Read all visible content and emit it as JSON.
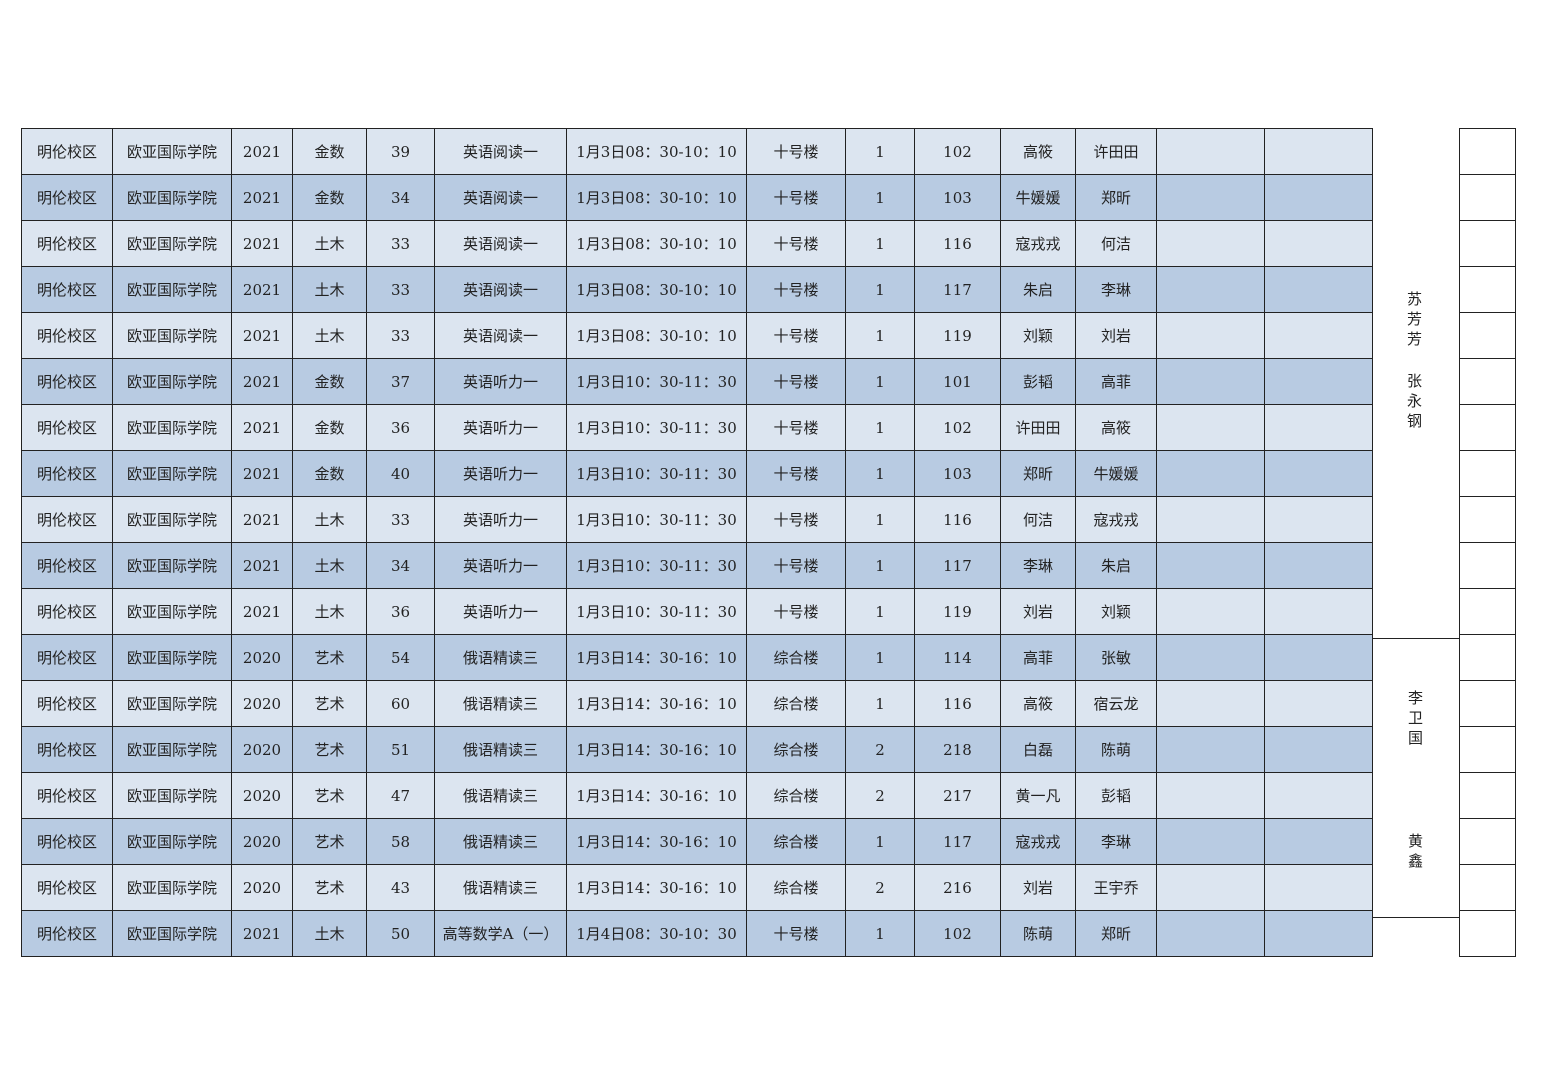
{
  "rows": [
    [
      "明伦校区",
      "欧亚国际学院",
      "2021",
      "金数",
      "39",
      "英语阅读一",
      "1月3日08：30-10：10",
      "十号楼",
      "1",
      "102",
      "高筱",
      "许田田",
      "",
      ""
    ],
    [
      "明伦校区",
      "欧亚国际学院",
      "2021",
      "金数",
      "34",
      "英语阅读一",
      "1月3日08：30-10：10",
      "十号楼",
      "1",
      "103",
      "牛媛媛",
      "郑昕",
      "",
      ""
    ],
    [
      "明伦校区",
      "欧亚国际学院",
      "2021",
      "土木",
      "33",
      "英语阅读一",
      "1月3日08：30-10：10",
      "十号楼",
      "1",
      "116",
      "寇戎戎",
      "何洁",
      "",
      ""
    ],
    [
      "明伦校区",
      "欧亚国际学院",
      "2021",
      "土木",
      "33",
      "英语阅读一",
      "1月3日08：30-10：10",
      "十号楼",
      "1",
      "117",
      "朱启",
      "李琳",
      "",
      ""
    ],
    [
      "明伦校区",
      "欧亚国际学院",
      "2021",
      "土木",
      "33",
      "英语阅读一",
      "1月3日08：30-10：10",
      "十号楼",
      "1",
      "119",
      "刘颖",
      "刘岩",
      "",
      ""
    ],
    [
      "明伦校区",
      "欧亚国际学院",
      "2021",
      "金数",
      "37",
      "英语听力一",
      "1月3日10：30-11：30",
      "十号楼",
      "1",
      "101",
      "彭韬",
      "高菲",
      "",
      ""
    ],
    [
      "明伦校区",
      "欧亚国际学院",
      "2021",
      "金数",
      "36",
      "英语听力一",
      "1月3日10：30-11：30",
      "十号楼",
      "1",
      "102",
      "许田田",
      "高筱",
      "",
      ""
    ],
    [
      "明伦校区",
      "欧亚国际学院",
      "2021",
      "金数",
      "40",
      "英语听力一",
      "1月3日10：30-11：30",
      "十号楼",
      "1",
      "103",
      "郑昕",
      "牛媛媛",
      "",
      ""
    ],
    [
      "明伦校区",
      "欧亚国际学院",
      "2021",
      "土木",
      "33",
      "英语听力一",
      "1月3日10：30-11：30",
      "十号楼",
      "1",
      "116",
      "何洁",
      "寇戎戎",
      "",
      ""
    ],
    [
      "明伦校区",
      "欧亚国际学院",
      "2021",
      "土木",
      "34",
      "英语听力一",
      "1月3日10：30-11：30",
      "十号楼",
      "1",
      "117",
      "李琳",
      "朱启",
      "",
      ""
    ],
    [
      "明伦校区",
      "欧亚国际学院",
      "2021",
      "土木",
      "36",
      "英语听力一",
      "1月3日10：30-11：30",
      "十号楼",
      "1",
      "119",
      "刘岩",
      "刘颖",
      "",
      ""
    ],
    [
      "明伦校区",
      "欧亚国际学院",
      "2020",
      "艺术",
      "54",
      "俄语精读三",
      "1月3日14：30-16：10",
      "综合楼",
      "1",
      "114",
      "高菲",
      "张敏",
      "",
      ""
    ],
    [
      "明伦校区",
      "欧亚国际学院",
      "2020",
      "艺术",
      "60",
      "俄语精读三",
      "1月3日14：30-16：10",
      "综合楼",
      "1",
      "116",
      "高筱",
      "宿云龙",
      "",
      ""
    ],
    [
      "明伦校区",
      "欧亚国际学院",
      "2020",
      "艺术",
      "51",
      "俄语精读三",
      "1月3日14：30-16：10",
      "综合楼",
      "2",
      "218",
      "白磊",
      "陈萌",
      "",
      ""
    ],
    [
      "明伦校区",
      "欧亚国际学院",
      "2020",
      "艺术",
      "47",
      "俄语精读三",
      "1月3日14：30-16：10",
      "综合楼",
      "2",
      "217",
      "黄一凡",
      "彭韬",
      "",
      ""
    ],
    [
      "明伦校区",
      "欧亚国际学院",
      "2020",
      "艺术",
      "58",
      "俄语精读三",
      "1月3日14：30-16：10",
      "综合楼",
      "1",
      "117",
      "寇戎戎",
      "李琳",
      "",
      ""
    ],
    [
      "明伦校区",
      "欧亚国际学院",
      "2020",
      "艺术",
      "43",
      "俄语精读三",
      "1月3日14：30-16：10",
      "综合楼",
      "2",
      "216",
      "刘岩",
      "王宇乔",
      "",
      ""
    ],
    [
      "明伦校区",
      "欧亚国际学院",
      "2021",
      "土木",
      "50",
      "高等数学A（一）",
      "1月4日08：30-10：30",
      "十号楼",
      "1",
      "102",
      "陈萌",
      "郑昕",
      "",
      ""
    ]
  ],
  "proctors": {
    "group1": [
      "苏芳芳",
      "张永钢"
    ],
    "group2": [
      "李卫国",
      "黄鑫"
    ]
  },
  "colors": {
    "row_light": "#dce5f0",
    "row_dark": "#b8cbe2",
    "border": "#222222"
  }
}
